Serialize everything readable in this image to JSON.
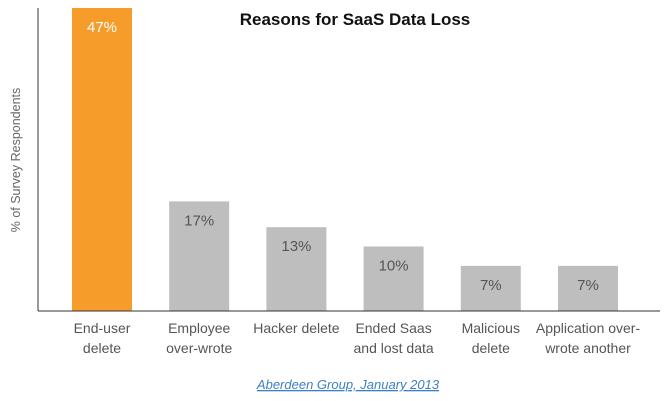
{
  "chart_data": {
    "type": "bar",
    "title": "Reasons for SaaS Data Loss",
    "ylabel": "% of Survey Respondents",
    "xlabel": "",
    "categories": [
      [
        "End-user",
        "delete"
      ],
      [
        "Employee",
        "over-wrote"
      ],
      [
        "Hacker delete"
      ],
      [
        "Ended Saas",
        "and lost data"
      ],
      [
        "Malicious",
        "delete"
      ],
      [
        "Application over-",
        "wrote another"
      ]
    ],
    "values": [
      47,
      17,
      13,
      10,
      7,
      7
    ],
    "value_labels": [
      "47%",
      "17%",
      "13%",
      "10%",
      "7%",
      "7%"
    ],
    "highlight_index": 0,
    "ylim": [
      0,
      47
    ],
    "grid": false,
    "colors": {
      "highlight": "#f59c2a",
      "bar": "#bebebe",
      "axis": "#333333"
    }
  },
  "source": {
    "text": "Aberdeen Group, January 2013"
  }
}
